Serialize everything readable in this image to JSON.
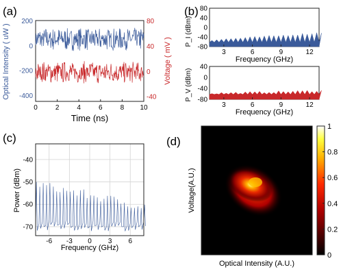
{
  "colors": {
    "blue": "#3a5a9a",
    "red": "#c8282a",
    "grid": "#d4d4d4",
    "axis": "#222222"
  },
  "panels": {
    "a": {
      "letter": "(a)"
    },
    "b": {
      "letter": "(b)"
    },
    "c": {
      "letter": "(c)"
    },
    "d": {
      "letter": "(d)"
    }
  },
  "chart_data": [
    {
      "id": "a",
      "type": "line",
      "xlabel": "Time (ns)",
      "ylabel_left": "Optical Intensity ( uW )",
      "ylabel_right": "Voltage ( mV )",
      "xlim": [
        0,
        10
      ],
      "ylim_left": [
        -450,
        200
      ],
      "ylim_right": [
        -48,
        80
      ],
      "xticks": [
        "0",
        "2",
        "4",
        "6",
        "8",
        "10"
      ],
      "yticks_left": [
        "200",
        "0",
        "-200",
        "-400"
      ],
      "yticks_right": [
        "80",
        "40",
        "0",
        "-40"
      ],
      "series": [
        {
          "axis": "left",
          "color": "blue",
          "mean": 50,
          "amplitude": 95
        },
        {
          "axis": "right",
          "color": "red",
          "mean": -2,
          "amplitude": 18
        }
      ]
    },
    {
      "id": "b-top",
      "type": "area",
      "ylabel": "P_I (dBm)",
      "xlabel": "Frequency (GHz)",
      "xlim": [
        1.5,
        13
      ],
      "ylim": [
        -80,
        80
      ],
      "xticks": [
        "3",
        "6",
        "9",
        "12"
      ],
      "yticks": [
        "80",
        "40",
        "0",
        "-40",
        "-80"
      ],
      "floor": -80,
      "comb_spacing_ghz": 0.5,
      "peak_start": -52,
      "peak_end": -22,
      "color": "blue"
    },
    {
      "id": "b-bottom",
      "type": "area",
      "ylabel": "P_V (dBm)",
      "xlabel": "Frequency (GHz)",
      "xlim": [
        1.5,
        13
      ],
      "ylim": [
        -80,
        40
      ],
      "xticks": [
        "3",
        "6",
        "9",
        "12"
      ],
      "yticks": [
        "40",
        "0",
        "-40",
        "-80"
      ],
      "floor": -80,
      "comb_spacing_ghz": 0.5,
      "peak_start": -58,
      "peak_end": -48,
      "color": "red"
    },
    {
      "id": "c",
      "type": "line",
      "xlabel": "Frequency (GHz)",
      "ylabel": "Power (dBm)",
      "xlim": [
        -8,
        8
      ],
      "ylim": [
        -74,
        -33
      ],
      "xticks": [
        "-6",
        "-3",
        "0",
        "3",
        "6"
      ],
      "yticks": [
        "-40",
        "-50",
        "-60",
        "-70"
      ],
      "grid": true,
      "comb_spacing_ghz": 0.5,
      "color": "blue"
    },
    {
      "id": "d",
      "type": "heatmap",
      "xlabel": "Optical Intensity (A.U.)",
      "ylabel": "Voltage(A.U.)",
      "colorbar_ticks": [
        "1",
        "0.8",
        "0.6",
        "0.4",
        "0.2",
        "0"
      ],
      "colormap": "hot",
      "peak_value": 1.0
    }
  ]
}
